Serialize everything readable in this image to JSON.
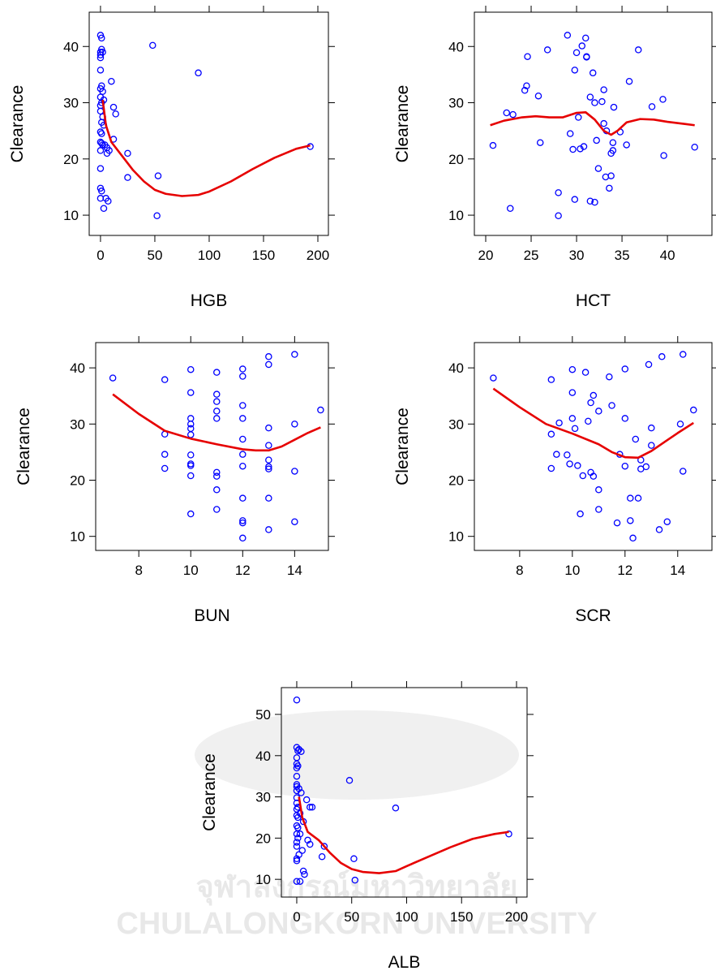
{
  "chart_data": [
    {
      "type": "scatter",
      "x_label": "HGB",
      "y_label": "Clearance",
      "color": "#0000ff",
      "xlim": [
        -10.4,
        209.7
      ],
      "ylim": [
        6.4,
        46.1
      ],
      "xticks": [
        0,
        50,
        100,
        150,
        200
      ],
      "yticks": [
        10,
        20,
        30,
        40
      ],
      "x": [
        0,
        1,
        1,
        0,
        2,
        0,
        0,
        0,
        1,
        0,
        2,
        0,
        3,
        1,
        0,
        0,
        2,
        1,
        3,
        0,
        1,
        0,
        1,
        2,
        4,
        6,
        0,
        8,
        0,
        0,
        1,
        0,
        5,
        7,
        3,
        10,
        12,
        14,
        25,
        25,
        48,
        53,
        52,
        90,
        193,
        12,
        6
      ],
      "values": [
        42,
        41.5,
        39.5,
        39,
        39,
        38.5,
        38,
        35.8,
        33,
        32.5,
        32,
        31,
        30.5,
        30,
        29.5,
        28.5,
        27.5,
        26.5,
        26,
        24.8,
        24.5,
        23,
        22.8,
        22.5,
        22.5,
        22,
        21.5,
        21.5,
        18.3,
        14.8,
        14.3,
        13,
        13,
        12.5,
        11.2,
        33.8,
        29.2,
        28,
        21,
        16.7,
        40.2,
        17,
        9.9,
        35.3,
        22.2,
        23.5,
        21
      ],
      "line": {
        "color": "#e60000",
        "x": [
          2,
          5,
          10,
          20,
          30,
          40,
          50,
          60,
          75,
          90,
          100,
          120,
          140,
          160,
          180,
          193
        ],
        "values": [
          30.5,
          26,
          23,
          20.5,
          18,
          16,
          14.5,
          13.8,
          13.4,
          13.6,
          14.2,
          16,
          18.2,
          20.2,
          21.8,
          22.4
        ]
      }
    },
    {
      "type": "scatter",
      "x_label": "HCT",
      "y_label": "Clearance",
      "color": "#0000ff",
      "xlim": [
        18.75,
        44.9
      ],
      "ylim": [
        6.4,
        46.1
      ],
      "xticks": [
        20,
        25,
        30,
        35,
        40
      ],
      "yticks": [
        10,
        20,
        30,
        40
      ],
      "x": [
        20.8,
        22.7,
        22.3,
        23,
        24.3,
        24.5,
        24.6,
        25.8,
        26,
        26.8,
        28,
        28,
        29,
        29.3,
        29.6,
        29.8,
        29.8,
        30,
        30.2,
        30.4,
        30.6,
        30.8,
        31,
        31.1,
        31.1,
        31.5,
        31.5,
        31.8,
        32,
        32,
        32.2,
        32.4,
        32.8,
        33,
        33,
        33.2,
        33.3,
        33.6,
        33.8,
        33.8,
        34,
        34,
        34.1,
        34.8,
        35.5,
        35.8,
        36.8,
        38.3,
        39.5,
        39.6,
        43
      ],
      "values": [
        22.4,
        11.2,
        28.2,
        27.9,
        32.2,
        33,
        38.2,
        31.2,
        22.9,
        39.4,
        14,
        9.9,
        42,
        24.5,
        21.7,
        35.8,
        12.8,
        38.9,
        27.4,
        21.8,
        40.1,
        22.2,
        41.5,
        38.1,
        38.2,
        31,
        12.5,
        35.3,
        30,
        12.3,
        23.3,
        18.3,
        30.2,
        32.3,
        26.3,
        16.8,
        25,
        14.8,
        21,
        17,
        21.5,
        22.9,
        29.2,
        24.8,
        22.5,
        33.8,
        39.4,
        29.3,
        30.6,
        20.6,
        22.1
      ],
      "line": {
        "color": "#e60000",
        "x": [
          20.5,
          22,
          24,
          25.5,
          27,
          28.5,
          30,
          31,
          32,
          33,
          33.8,
          34.5,
          35.5,
          37,
          38.5,
          40,
          42,
          43
        ],
        "values": [
          26,
          26.8,
          27.4,
          27.6,
          27.4,
          27.4,
          28.2,
          28.3,
          27,
          25,
          24.3,
          25,
          26.5,
          27.1,
          27,
          26.6,
          26.2,
          26
        ]
      }
    },
    {
      "type": "scatter",
      "x_label": "BUN",
      "y_label": "Clearance",
      "color": "#0000ff",
      "xlim": [
        6.34,
        15.3
      ],
      "ylim": [
        7.5,
        44.5
      ],
      "xticks": [
        8,
        10,
        12,
        14
      ],
      "yticks": [
        10,
        20,
        30,
        40
      ],
      "x": [
        7,
        9,
        9,
        9,
        9,
        10,
        10,
        10,
        10,
        10,
        10,
        10,
        10,
        10,
        10,
        10,
        11,
        11,
        11,
        11,
        11,
        11,
        11,
        11,
        11,
        12,
        12,
        12,
        12,
        12,
        12,
        12,
        12,
        12,
        12,
        12,
        13,
        13,
        13,
        13,
        13,
        13,
        13,
        13,
        13,
        14,
        14,
        14,
        14,
        15
      ],
      "values": [
        38.2,
        37.9,
        28.2,
        24.6,
        22.1,
        39.7,
        35.6,
        31,
        30,
        29.2,
        28.1,
        24.5,
        22.9,
        22.6,
        20.8,
        14,
        39.2,
        35.3,
        34,
        32.3,
        31,
        21.4,
        20.7,
        18.3,
        14.8,
        39.8,
        38.5,
        33.3,
        31,
        27.3,
        24.6,
        22.5,
        16.8,
        12.8,
        12.4,
        9.7,
        42,
        40.6,
        29.3,
        26.2,
        23.6,
        22.4,
        22,
        16.8,
        11.2,
        42.4,
        30,
        21.6,
        12.6,
        32.5
      ],
      "line": {
        "color": "#e60000",
        "x": [
          7,
          8,
          9,
          10,
          11,
          12,
          12.5,
          13,
          13.5,
          14,
          14.5,
          15
        ],
        "values": [
          35.3,
          31.8,
          28.8,
          27.4,
          26.4,
          25.5,
          25.3,
          25.3,
          26,
          27.2,
          28.4,
          29.4
        ]
      }
    },
    {
      "type": "scatter",
      "x_label": "SCR",
      "y_label": "Clearance",
      "color": "#0000ff",
      "xlim": [
        6.28,
        15.3
      ],
      "ylim": [
        7.5,
        44.5
      ],
      "xticks": [
        8,
        10,
        12,
        14
      ],
      "yticks": [
        10,
        20,
        30,
        40
      ],
      "x": [
        7,
        9.2,
        9.2,
        9.4,
        9.2,
        9.5,
        9.8,
        9.9,
        10,
        10,
        10,
        10.1,
        10.2,
        10.3,
        10.4,
        10.5,
        10.6,
        10.7,
        10.7,
        10.8,
        10.8,
        11,
        11,
        11,
        11.4,
        11.5,
        11.7,
        11.8,
        12,
        12,
        12,
        12.2,
        12.2,
        12.3,
        12.4,
        12.5,
        12.6,
        12.6,
        12.8,
        12.9,
        13,
        13,
        13.3,
        13.4,
        13.6,
        14.1,
        14.2,
        14.2,
        14.6
      ],
      "values": [
        38.2,
        37.9,
        28.2,
        24.6,
        22.1,
        30.2,
        24.5,
        22.9,
        39.7,
        35.6,
        31,
        29.2,
        22.6,
        14,
        20.8,
        39.2,
        30.5,
        33.8,
        21.4,
        35.1,
        20.7,
        32.3,
        18.3,
        14.8,
        38.4,
        33.3,
        12.4,
        24.6,
        39.8,
        31,
        22.5,
        16.8,
        12.8,
        9.7,
        27.3,
        16.8,
        23.6,
        22,
        22.4,
        40.6,
        29.3,
        26.2,
        11.2,
        42,
        12.6,
        30,
        42.4,
        21.6,
        32.5
      ],
      "line": {
        "color": "#e60000",
        "x": [
          7,
          8,
          9,
          10,
          11,
          11.5,
          12,
          12.5,
          13,
          13.5,
          14,
          14.6
        ],
        "values": [
          36.3,
          33,
          30,
          28.3,
          26.4,
          25,
          24.1,
          24,
          25.2,
          26.8,
          28.4,
          30.2
        ]
      }
    },
    {
      "type": "scatter",
      "x_label": "ALB",
      "y_label": "Clearance",
      "color": "#0000ff",
      "xlim": [
        -14,
        209.6
      ],
      "ylim": [
        5.7,
        56.5
      ],
      "xticks": [
        0,
        50,
        100,
        150,
        200
      ],
      "yticks": [
        10,
        20,
        30,
        40,
        50
      ],
      "x": [
        0,
        0,
        2,
        1,
        4,
        0,
        0,
        1,
        0,
        0,
        0,
        0,
        2,
        0,
        4,
        0,
        0,
        1,
        0,
        3,
        0,
        1,
        6,
        0,
        1,
        3,
        0,
        1,
        0,
        0,
        5,
        2,
        0,
        0,
        6,
        7,
        0,
        3,
        9,
        12,
        14,
        10,
        12,
        25,
        23,
        48,
        52,
        53,
        90,
        193
      ],
      "values": [
        53.5,
        42,
        41.5,
        41.2,
        41,
        39.5,
        38,
        37.5,
        37,
        35,
        33,
        32.5,
        32,
        31.5,
        31,
        29.8,
        28.5,
        27.5,
        27,
        26,
        25.5,
        25,
        24,
        23,
        22.5,
        21,
        21,
        20,
        19,
        18,
        17,
        16,
        15,
        14.5,
        12,
        11.2,
        9.5,
        9.5,
        29.3,
        27.5,
        27.5,
        19.5,
        18.5,
        18,
        15.5,
        34,
        15,
        9.8,
        27.3,
        21
      ],
      "line": {
        "color": "#e60000",
        "x": [
          2,
          5,
          10,
          20,
          30,
          40,
          50,
          60,
          75,
          90,
          100,
          120,
          140,
          160,
          180,
          193
        ],
        "values": [
          30,
          25,
          21.5,
          19.5,
          16.5,
          14,
          12.5,
          11.8,
          11.5,
          12,
          13.2,
          15.5,
          17.8,
          19.8,
          21,
          21.5
        ]
      }
    }
  ],
  "watermark": {
    "thai": "จุฬาลงกรณ์มหาวิทยาลัย",
    "english": "CHULALONGKORN UNIVERSITY"
  }
}
